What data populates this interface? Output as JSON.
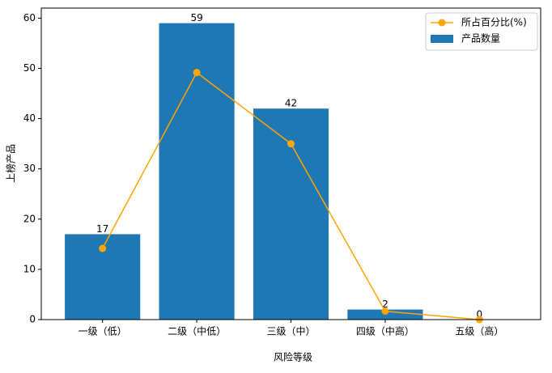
{
  "chart_data": {
    "type": "bar",
    "xlabel": "风险等级",
    "ylabel": "上榜产品",
    "categories": [
      "一级（低）",
      "二级（中低）",
      "三级（中）",
      "四级（中高）",
      "五级（高）"
    ],
    "series": [
      {
        "name": "所占百分比(%)",
        "type": "line",
        "color": "#ffa500",
        "values": [
          14.17,
          49.17,
          35,
          1.67,
          0
        ]
      },
      {
        "name": "产品数量",
        "type": "bar",
        "color": "#1f77b4",
        "values": [
          17,
          59,
          42,
          2,
          0
        ]
      }
    ],
    "ylim": [
      0,
      62
    ],
    "yticks": [
      0,
      10,
      20,
      30,
      40,
      50,
      60
    ],
    "grid": false,
    "legend": "upper right"
  }
}
